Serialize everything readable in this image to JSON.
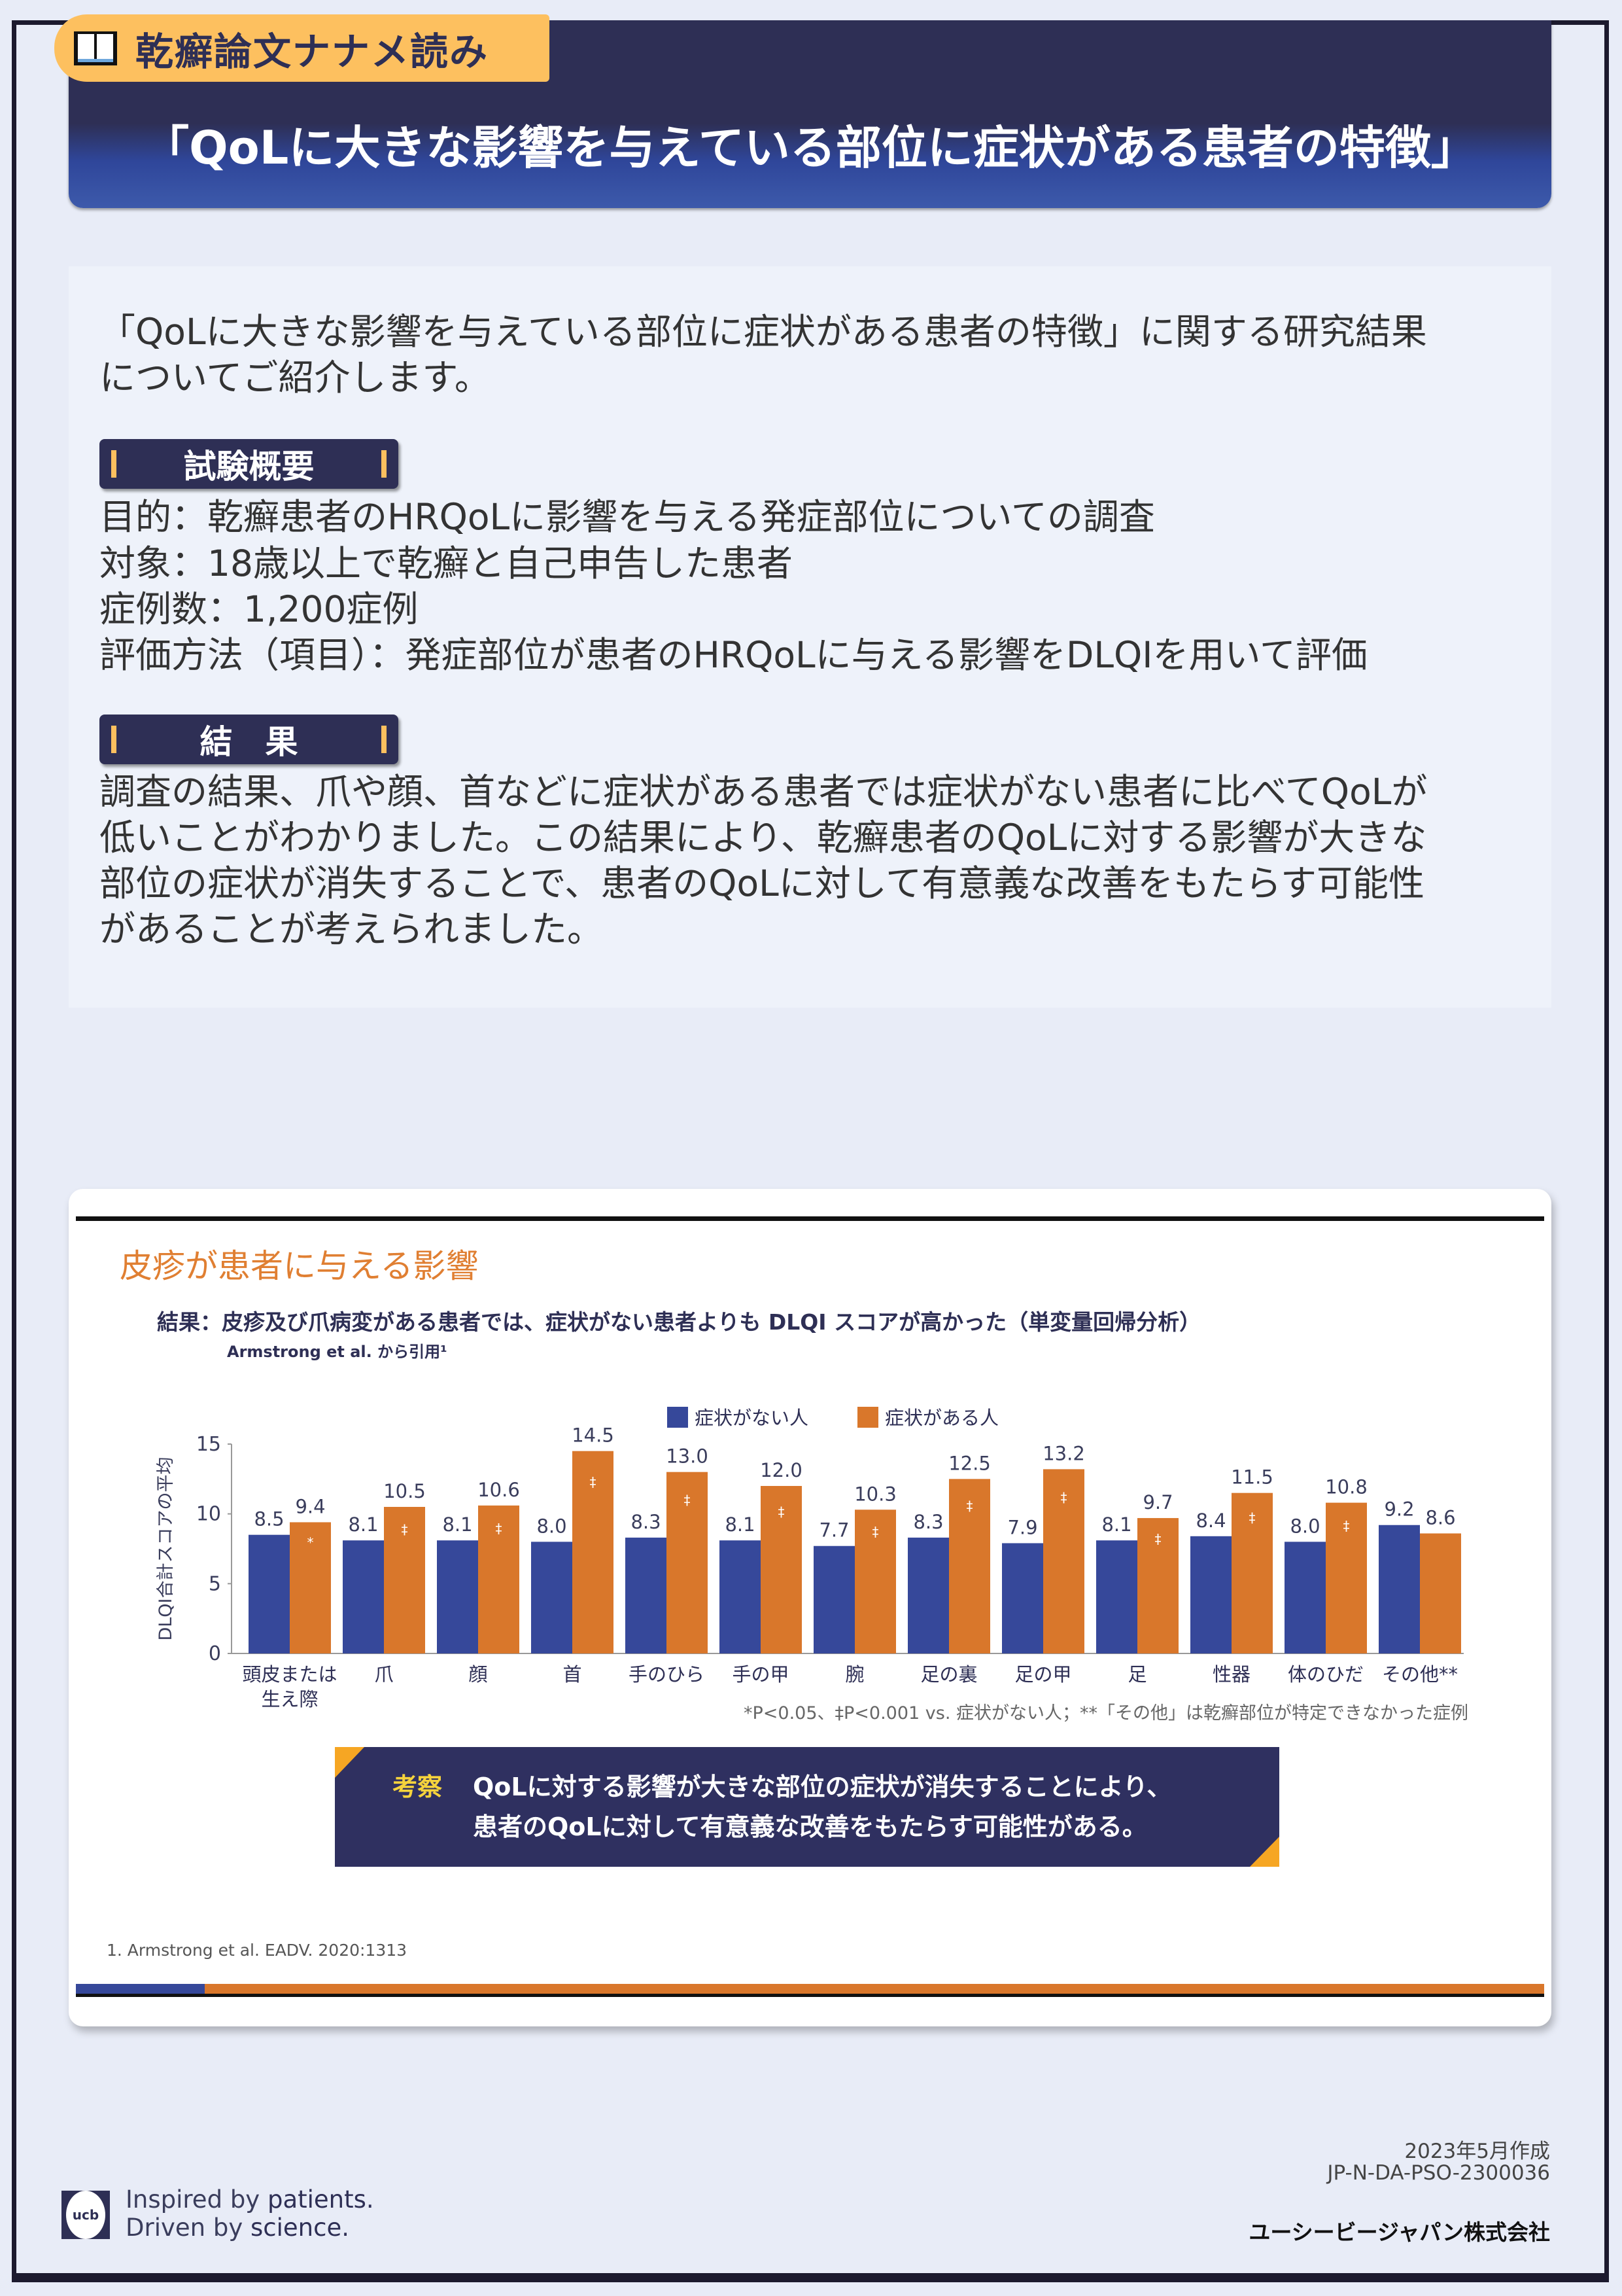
{
  "header": {
    "tag": "乾癬論文ナナメ読み",
    "tag_icon": "open-book-icon",
    "title": "「QoLに大きな影響を与えている部位に症状がある患者の特徴」"
  },
  "intro": [
    "「QoLに大きな影響を与えている部位に症状がある患者の特徴」に関する研究結果",
    "についてご紹介します。"
  ],
  "overview": {
    "label": "試験概要",
    "lines": [
      "目的：乾癬患者のHRQoLに影響を与える発症部位についての調査",
      "対象：18歳以上で乾癬と自己申告した患者",
      "症例数：1,200症例",
      "評価方法（項目）：発症部位が患者のHRQoLに与える影響をDLQIを用いて評価"
    ]
  },
  "results": {
    "label": "結　果",
    "lines": [
      "調査の結果、爪や顔、首などに症状がある患者では症状がない患者に比べてQoLが",
      "低いことがわかりました。この結果により、乾癬患者のQoLに対する影響が大きな",
      "部位の症状が消失することで、患者のQoLに対して有意義な改善をもたらす可能性",
      "があることが考えられました。"
    ]
  },
  "slide": {
    "heading": "皮疹が患者に与える影響",
    "subtitle": "結果：皮疹及び爪病変がある患者では、症状がない患者よりも DLQI スコアが高かった（単変量回帰分析）",
    "citation": "Armstrong et al. から引用¹",
    "footnote": "*P<0.05、‡P<0.001 vs. 症状がない人；**「その他」は乾癬部位が特定できなかった症例",
    "conclusion_label": "考察",
    "conclusion": [
      "QoLに対する影響が大きな部位の症状が消失することにより、",
      "患者のQoLに対して有意義な改善をもたらす可能性がある。"
    ],
    "reference": "1.  Armstrong et al. EADV. 2020:1313"
  },
  "chart_data": {
    "type": "bar",
    "ylabel": "DLQI合計スコアの平均",
    "ylim": [
      0,
      15
    ],
    "yticks": [
      0,
      5,
      10,
      15
    ],
    "legend_position": "top-center",
    "categories": [
      [
        "頭皮または",
        "生え際"
      ],
      [
        "爪"
      ],
      [
        "顔"
      ],
      [
        "首"
      ],
      [
        "手のひら"
      ],
      [
        "手の甲"
      ],
      [
        "腕"
      ],
      [
        "足の裏"
      ],
      [
        "足の甲"
      ],
      [
        "足"
      ],
      [
        "性器"
      ],
      [
        "体のひだ"
      ],
      [
        "その他**"
      ]
    ],
    "series": [
      {
        "name": "症状がない人",
        "color": "#36489a",
        "values": [
          8.5,
          8.1,
          8.1,
          8.0,
          8.3,
          8.1,
          7.7,
          8.3,
          7.9,
          8.1,
          8.4,
          8.0,
          9.2
        ]
      },
      {
        "name": "症状がある人",
        "color": "#d9772b",
        "values": [
          9.4,
          10.5,
          10.6,
          14.5,
          13.0,
          12.0,
          10.3,
          12.5,
          13.2,
          9.7,
          11.5,
          10.8,
          8.6
        ],
        "significance": [
          "*",
          "‡",
          "‡",
          "‡",
          "‡",
          "‡",
          "‡",
          "‡",
          "‡",
          "‡",
          "‡",
          "‡",
          ""
        ]
      }
    ]
  },
  "footer": {
    "date": "2023年5月作成",
    "code": "JP-N-DA-PSO-2300036",
    "company": "ユーシービージャパン株式会社",
    "logo": "ucb",
    "slogan1a": "Inspired by ",
    "slogan1b": "patients.",
    "slogan2a": "Driven by ",
    "slogan2b": "science."
  }
}
